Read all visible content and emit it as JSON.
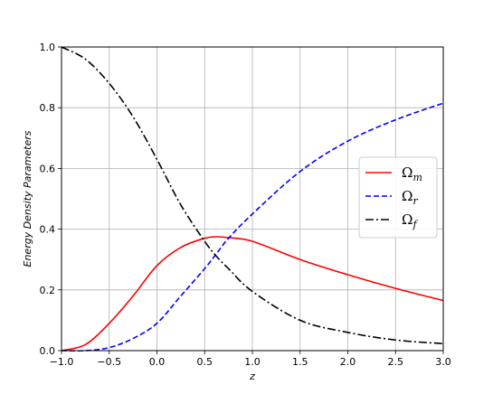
{
  "chart_data": {
    "type": "line",
    "title": "",
    "xlabel": "z",
    "ylabel": "Energy Density Parameters",
    "xlim": [
      -1.0,
      3.0
    ],
    "ylim": [
      0.0,
      1.0
    ],
    "x_ticks": [
      -1.0,
      -0.5,
      0.0,
      0.5,
      1.0,
      1.5,
      2.0,
      2.5,
      3.0
    ],
    "x_tick_labels": [
      "−1.0",
      "−0.5",
      "0.0",
      "0.5",
      "1.0",
      "1.5",
      "2.0",
      "2.5",
      "3.0"
    ],
    "y_ticks": [
      0.0,
      0.2,
      0.4,
      0.6,
      0.8,
      1.0
    ],
    "y_tick_labels": [
      "0.0",
      "0.2",
      "0.4",
      "0.6",
      "0.8",
      "1.0"
    ],
    "grid": true,
    "legend_position": "right",
    "x": [
      -1.0,
      -0.75,
      -0.5,
      -0.25,
      0.0,
      0.25,
      0.5,
      0.625,
      0.75,
      1.0,
      1.5,
      2.0,
      2.5,
      3.0
    ],
    "series": [
      {
        "name_main": "Ω",
        "name_sub": "m",
        "color": "#ff0000",
        "dash": "solid",
        "values": [
          0.0,
          0.02,
          0.09,
          0.18,
          0.28,
          0.34,
          0.37,
          0.375,
          0.372,
          0.36,
          0.3,
          0.25,
          0.205,
          0.165
        ]
      },
      {
        "name_main": "Ω",
        "name_sub": "r",
        "color": "#0000ff",
        "dash": "dashed",
        "values": [
          0.0,
          0.0,
          0.01,
          0.04,
          0.09,
          0.18,
          0.27,
          0.32,
          0.37,
          0.45,
          0.59,
          0.69,
          0.76,
          0.815
        ]
      },
      {
        "name_main": "Ω",
        "name_sub": "f",
        "color": "#000000",
        "dash": "dashdot",
        "values": [
          1.0,
          0.96,
          0.88,
          0.77,
          0.63,
          0.48,
          0.36,
          0.31,
          0.27,
          0.195,
          0.1,
          0.06,
          0.035,
          0.023
        ]
      }
    ]
  }
}
